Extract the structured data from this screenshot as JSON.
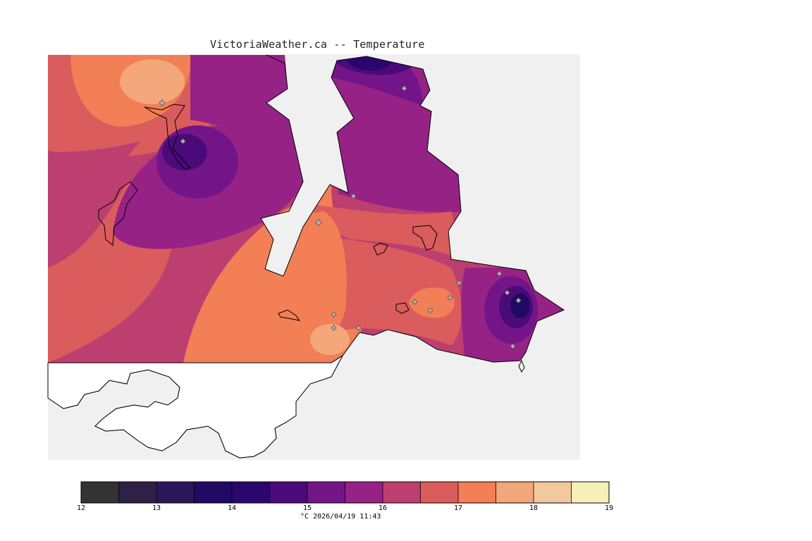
{
  "title": "VictoriaWeather.ca -- Temperature",
  "legend": {
    "unit": "°C",
    "timestamp": "2026/04/19 11:43",
    "ticks": [
      "12",
      "13",
      "14",
      "15",
      "16",
      "17",
      "18",
      "19"
    ],
    "bins": [
      {
        "from": 12.0,
        "to": 12.5,
        "color": "#333333"
      },
      {
        "from": 12.5,
        "to": 13.0,
        "color": "#2e2145"
      },
      {
        "from": 13.0,
        "to": 13.5,
        "color": "#2a1659"
      },
      {
        "from": 13.5,
        "to": 14.0,
        "color": "#200a65"
      },
      {
        "from": 14.0,
        "to": 14.5,
        "color": "#2c066f"
      },
      {
        "from": 14.5,
        "to": 15.0,
        "color": "#4b0a7a"
      },
      {
        "from": 15.0,
        "to": 15.5,
        "color": "#731589"
      },
      {
        "from": 15.5,
        "to": 16.0,
        "color": "#962286"
      },
      {
        "from": 16.0,
        "to": 16.5,
        "color": "#bc3f70"
      },
      {
        "from": 16.5,
        "to": 17.0,
        "color": "#da5c5c"
      },
      {
        "from": 17.0,
        "to": 17.5,
        "color": "#f27f55"
      },
      {
        "from": 17.5,
        "to": 18.0,
        "color": "#f3a77a"
      },
      {
        "from": 18.0,
        "to": 18.5,
        "color": "#f3c89e"
      },
      {
        "from": 18.5,
        "to": 19.0,
        "color": "#f6efb8"
      }
    ]
  },
  "colors": {
    "water": "#f0f0f0",
    "coast": "#000000",
    "station_marker": "#b0b0b0"
  }
}
